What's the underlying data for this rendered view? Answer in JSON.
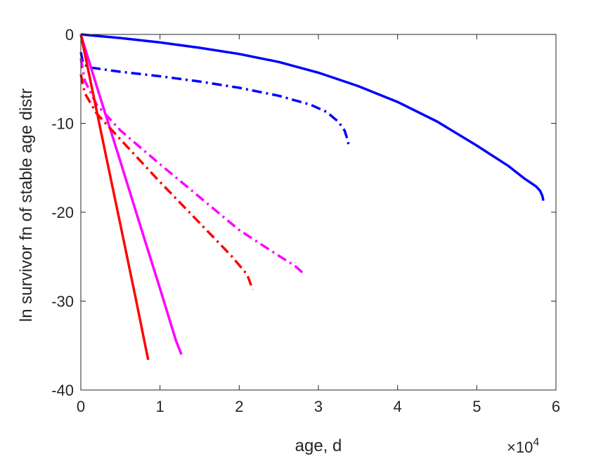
{
  "chart_data": {
    "type": "line",
    "xlabel": "age, d",
    "ylabel": "ln survivor fn of stable age distr",
    "x_exponent_label": {
      "base": "×10",
      "exp": "4"
    },
    "xlim": [
      0,
      60000
    ],
    "ylim": [
      -40,
      0
    ],
    "xticks": [
      0,
      10000,
      20000,
      30000,
      40000,
      50000,
      60000
    ],
    "xtick_labels": [
      "0",
      "1",
      "2",
      "3",
      "4",
      "5",
      "6"
    ],
    "yticks": [
      0,
      -10,
      -20,
      -30,
      -40
    ],
    "ytick_labels": [
      "0",
      "-10",
      "-20",
      "-30",
      "-40"
    ],
    "grid": false,
    "series": [
      {
        "color": "#0000ff",
        "style": "solid",
        "x": [
          0,
          5000,
          10000,
          15000,
          20000,
          25000,
          30000,
          35000,
          40000,
          45000,
          50000,
          54000,
          56000,
          57500,
          58000,
          58300,
          58400
        ],
        "y": [
          0,
          -0.4,
          -0.9,
          -1.5,
          -2.2,
          -3.1,
          -4.3,
          -5.8,
          -7.6,
          -9.8,
          -12.5,
          -14.8,
          -16.2,
          -17.1,
          -17.6,
          -18.2,
          -18.7
        ]
      },
      {
        "color": "#0000ff",
        "style": "dashdot",
        "x": [
          0,
          300,
          1000,
          5000,
          10000,
          15000,
          20000,
          25000,
          29000,
          31000,
          32500,
          33300,
          33700,
          33800
        ],
        "y": [
          -2.0,
          -3.3,
          -3.7,
          -4.2,
          -4.7,
          -5.3,
          -6.0,
          -6.9,
          -7.9,
          -8.7,
          -9.8,
          -10.8,
          -11.9,
          -12.4
        ]
      },
      {
        "color": "#ff00ff",
        "style": "solid",
        "x": [
          0,
          2000,
          5000,
          8000,
          10000,
          12000,
          12700
        ],
        "y": [
          0,
          -5.8,
          -14.3,
          -22.9,
          -28.6,
          -34.4,
          -36.0
        ]
      },
      {
        "color": "#ff00ff",
        "style": "dashdot",
        "x": [
          0,
          500,
          2000,
          5000,
          10000,
          15000,
          20000,
          25000,
          27000,
          28000
        ],
        "y": [
          -2.7,
          -5.2,
          -7.9,
          -10.8,
          -14.6,
          -18.3,
          -22.0,
          -24.9,
          -26.0,
          -26.8
        ]
      },
      {
        "color": "#ff0000",
        "style": "solid",
        "x": [
          0,
          1000,
          3000,
          5000,
          7000,
          8500
        ],
        "y": [
          0,
          -4.3,
          -12.9,
          -21.4,
          -30.0,
          -36.6
        ]
      },
      {
        "color": "#ff0000",
        "style": "dashdot",
        "x": [
          0,
          500,
          2000,
          5000,
          10000,
          15000,
          19000,
          21000,
          21700
        ],
        "y": [
          -4.5,
          -6.6,
          -8.9,
          -11.8,
          -16.6,
          -21.2,
          -24.9,
          -27.0,
          -28.7
        ]
      }
    ]
  }
}
